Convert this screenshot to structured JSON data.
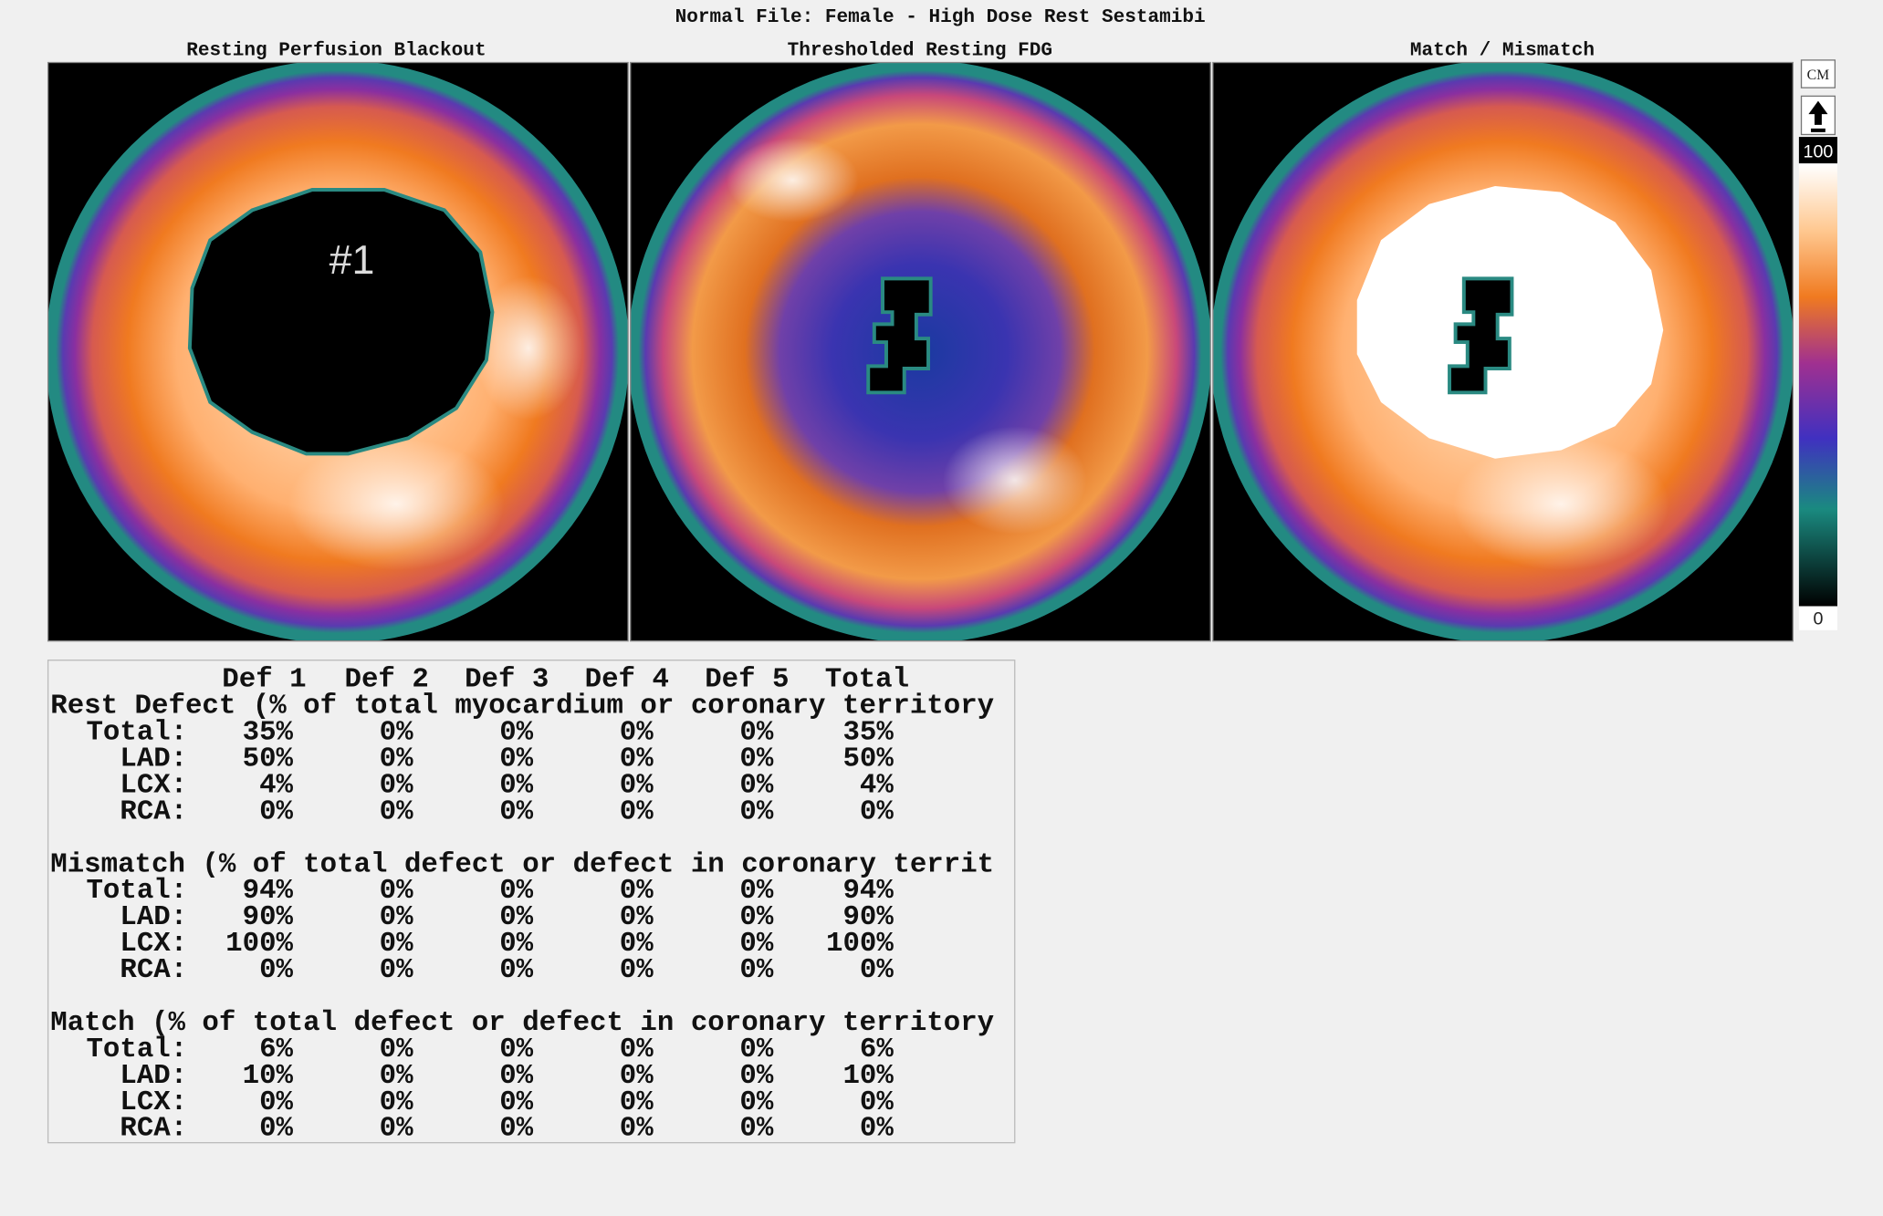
{
  "header": {
    "title": "Normal File:  Female - High Dose Rest Sestamibi"
  },
  "panels": [
    {
      "title": "Resting Perfusion Blackout",
      "label": "#1"
    },
    {
      "title": "Thresholded Resting FDG"
    },
    {
      "title": "Match / Mismatch"
    }
  ],
  "colorbar": {
    "button": "CM",
    "top_label": "100",
    "bottom_label": "0"
  },
  "table": {
    "header": [
      "Def 1",
      "Def 2",
      "Def 3",
      "Def 4",
      "Def 5",
      "Total"
    ],
    "sections": [
      {
        "title": "Rest Defect (% of total myocardium or coronary territory",
        "rows": [
          {
            "label": "Total:",
            "cells": [
              "35%",
              "0%",
              "0%",
              "0%",
              "0%",
              "35%"
            ]
          },
          {
            "label": "LAD:",
            "cells": [
              "50%",
              "0%",
              "0%",
              "0%",
              "0%",
              "50%"
            ]
          },
          {
            "label": "LCX:",
            "cells": [
              "4%",
              "0%",
              "0%",
              "0%",
              "0%",
              "4%"
            ]
          },
          {
            "label": "RCA:",
            "cells": [
              "0%",
              "0%",
              "0%",
              "0%",
              "0%",
              "0%"
            ]
          }
        ]
      },
      {
        "title": "Mismatch (% of total defect or defect in coronary territ",
        "rows": [
          {
            "label": "Total:",
            "cells": [
              "94%",
              "0%",
              "0%",
              "0%",
              "0%",
              "94%"
            ]
          },
          {
            "label": "LAD:",
            "cells": [
              "90%",
              "0%",
              "0%",
              "0%",
              "0%",
              "90%"
            ]
          },
          {
            "label": "LCX:",
            "cells": [
              "100%",
              "0%",
              "0%",
              "0%",
              "0%",
              "100%"
            ]
          },
          {
            "label": "RCA:",
            "cells": [
              "0%",
              "0%",
              "0%",
              "0%",
              "0%",
              "0%"
            ]
          }
        ]
      },
      {
        "title": "Match (% of total defect or defect in coronary territory",
        "rows": [
          {
            "label": "Total:",
            "cells": [
              "6%",
              "0%",
              "0%",
              "0%",
              "0%",
              "6%"
            ]
          },
          {
            "label": "LAD:",
            "cells": [
              "10%",
              "0%",
              "0%",
              "0%",
              "0%",
              "10%"
            ]
          },
          {
            "label": "LCX:",
            "cells": [
              "0%",
              "0%",
              "0%",
              "0%",
              "0%",
              "0%"
            ]
          },
          {
            "label": "RCA:",
            "cells": [
              "0%",
              "0%",
              "0%",
              "0%",
              "0%",
              "0%"
            ]
          }
        ]
      }
    ]
  }
}
